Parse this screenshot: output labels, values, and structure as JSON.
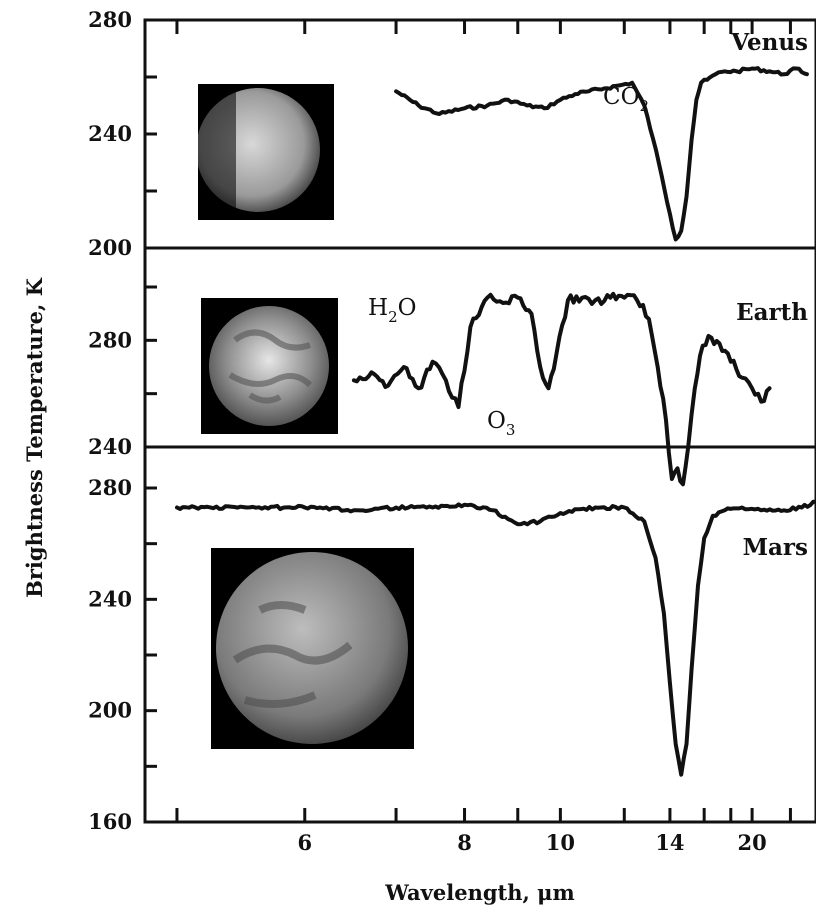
{
  "chart_data": {
    "type": "line",
    "xlabel": "Wavelength, μm",
    "ylabel": "Brightness Temperature, K",
    "x_scale": "reciprocal",
    "x_tick_labels": [
      "6",
      "8",
      "10",
      "14",
      "20"
    ],
    "x_ticks": [
      5,
      6,
      7,
      8,
      9,
      10,
      12,
      14,
      16,
      18,
      20,
      25
    ],
    "xlim": [
      4.8,
      30
    ],
    "grid": false,
    "panels": [
      {
        "name": "Venus",
        "ylim": [
          200,
          280
        ],
        "y_tick_labels": [
          "280",
          "240",
          "200"
        ],
        "y_ticks": [
          200,
          220,
          240,
          260,
          280
        ],
        "series": [
          {
            "name": "Venus",
            "x": [
              7.0,
              7.3,
              7.6,
              8.0,
              8.4,
              8.8,
              9.2,
              9.6,
              10.0,
              10.4,
              10.8,
              11.3,
              11.8,
              12.3,
              12.8,
              13.2,
              13.6,
              14.0,
              14.3,
              14.6,
              14.9,
              15.2,
              15.5,
              15.8,
              16.2,
              16.8,
              17.5,
              18.5,
              20,
              22,
              24,
              26,
              28
            ],
            "y": [
              255,
              250,
              247,
              249,
              250,
              252,
              250,
              249,
              252,
              254,
              255,
              256,
              257,
              258,
              250,
              238,
              225,
              212,
              203,
              206,
              218,
              238,
              252,
              258,
              259,
              261,
              262,
              262,
              263,
              262,
              261,
              263,
              261
            ]
          }
        ]
      },
      {
        "name": "Earth",
        "ylim": [
          240,
          300
        ],
        "y_tick_labels": [
          "280",
          "240"
        ],
        "y_ticks": [
          240,
          260,
          280,
          300
        ],
        "series": [
          {
            "name": "Earth",
            "x": [
              6.5,
              6.7,
              6.9,
              7.1,
              7.3,
              7.5,
              7.7,
              7.9,
              8.1,
              8.4,
              8.7,
              9.0,
              9.3,
              9.5,
              9.7,
              9.9,
              10.2,
              10.6,
              11.0,
              11.5,
              12.0,
              12.5,
              13.0,
              13.4,
              13.8,
              14.1,
              14.4,
              14.7,
              15.0,
              15.4,
              15.9,
              16.5,
              17.3,
              18.0,
              19.0,
              20.0,
              21.0,
              22.0
            ],
            "y": [
              265,
              268,
              263,
              270,
              262,
              272,
              265,
              255,
              285,
              296,
              294,
              296,
              290,
              270,
              262,
              275,
              295,
              296,
              295,
              296,
              296,
              295,
              288,
              270,
              250,
              228,
              232,
              226,
              240,
              262,
              278,
              281,
              276,
              272,
              266,
              262,
              257,
              262
            ]
          }
        ]
      },
      {
        "name": "Mars",
        "ylim": [
          160,
          280
        ],
        "y_tick_labels": [
          "280",
          "240",
          "200",
          "160"
        ],
        "y_ticks": [
          160,
          180,
          200,
          220,
          240,
          260,
          280
        ],
        "series": [
          {
            "name": "Mars",
            "x": [
              5.0,
              5.5,
              6.0,
              6.5,
              7.0,
              7.5,
              8.0,
              8.5,
              9.0,
              9.5,
              10.0,
              11.0,
              12.0,
              12.8,
              13.3,
              13.7,
              14.0,
              14.3,
              14.6,
              14.9,
              15.2,
              15.6,
              16.0,
              16.6,
              17.5,
              19.0,
              21.0,
              24.0,
              27.0,
              30.0
            ],
            "y": [
              273,
              273,
              273,
              272,
              273,
              273,
              274,
              272,
              267,
              268,
              271,
              273,
              273,
              268,
              255,
              235,
              210,
              188,
              177,
              188,
              215,
              245,
              262,
              270,
              272,
              273,
              272,
              272,
              273,
              275
            ]
          }
        ]
      }
    ],
    "annotations": [
      {
        "panel": "Venus",
        "base": "CO",
        "sub": "2"
      },
      {
        "panel": "Earth",
        "base": "H",
        "sub": "2",
        "base2": "O"
      },
      {
        "panel": "Earth",
        "base": "O",
        "sub": "3"
      }
    ],
    "legend": "none"
  }
}
